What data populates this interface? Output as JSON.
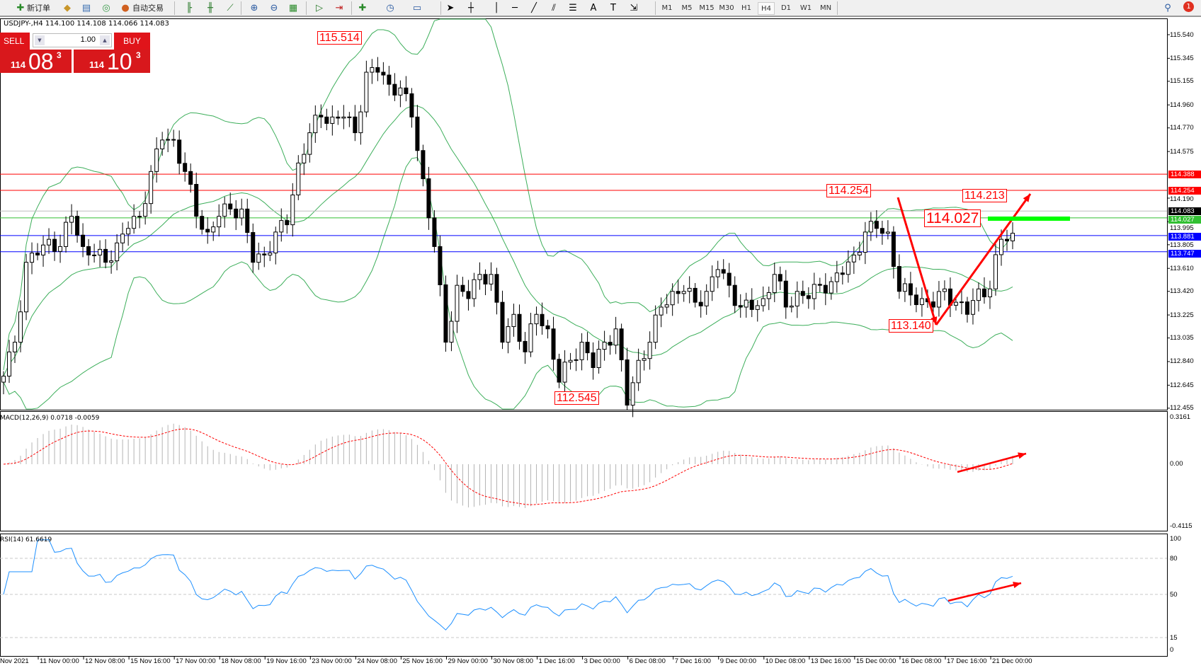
{
  "toolbar": {
    "new_order": "新订单",
    "auto_trading": "自动交易",
    "timeframes": [
      "M1",
      "M5",
      "M15",
      "M30",
      "H1",
      "H4",
      "D1",
      "W1",
      "MN"
    ],
    "active_timeframe": "H4",
    "notification_count": "1"
  },
  "chart_header": "USDJPY-,H4  114.100 114.108 114.066 114.083",
  "one_click": {
    "sell_label": "SELL",
    "buy_label": "BUY",
    "volume": "1.00",
    "sell_big": "114",
    "sell_main": "08",
    "sell_sup": "3",
    "buy_big": "114",
    "buy_main": "10",
    "buy_sup": "3",
    "color": "#e0141a"
  },
  "price_axis": [
    "115.540",
    "115.345",
    "115.155",
    "114.960",
    "114.770",
    "114.575",
    "114.190",
    "113.995",
    "113.805",
    "113.610",
    "113.420",
    "113.225",
    "113.035",
    "112.840",
    "112.645",
    "112.455"
  ],
  "price_tags": [
    {
      "value": "114.388",
      "color": "#ff0000"
    },
    {
      "value": "114.254",
      "color": "#ff0000"
    },
    {
      "value": "114.083",
      "color": "#000000"
    },
    {
      "value": "114.027",
      "color": "#32c032"
    },
    {
      "value": "113.881",
      "color": "#0000ff"
    },
    {
      "value": "113.747",
      "color": "#0000ff"
    }
  ],
  "annotations": {
    "high_label": "115.514",
    "low_label": "112.545",
    "resistance_label": "114.254",
    "recent_high_label": "114.213",
    "breakout_label": "114.027",
    "swing_low_label": "113.140"
  },
  "macd": {
    "label": "MACD(12,26,9) 0.0718 -0.0059",
    "axis": [
      "0.3161",
      "0.00",
      "-0.4115"
    ]
  },
  "rsi": {
    "label": "RSI(14) 61.6619",
    "axis": [
      "100",
      "80",
      "50",
      "15",
      "0"
    ]
  },
  "time_axis": [
    "Nov 2021",
    "11 Nov 00:00",
    "12 Nov 08:00",
    "15 Nov 16:00",
    "17 Nov 00:00",
    "18 Nov 08:00",
    "19 Nov 16:00",
    "23 Nov 00:00",
    "24 Nov 08:00",
    "25 Nov 16:00",
    "29 Nov 00:00",
    "30 Nov 08:00",
    "1 Dec 16:00",
    "3 Dec 00:00",
    "6 Dec 08:00",
    "7 Dec 16:00",
    "9 Dec 00:00",
    "10 Dec 08:00",
    "13 Dec 16:00",
    "15 Dec 00:00",
    "16 Dec 08:00",
    "17 Dec 16:00",
    "21 Dec 00:00"
  ],
  "chart_data": {
    "type": "candlestick",
    "symbol": "USDJPY-",
    "timeframe": "H4",
    "ylim": [
      112.455,
      115.54
    ],
    "closes": [
      112.72,
      113.0,
      113.66,
      113.72,
      113.85,
      113.79,
      114.04,
      113.79,
      113.72,
      113.66,
      113.82,
      113.94,
      114.04,
      114.41,
      114.67,
      114.67,
      114.41,
      114.04,
      113.91,
      114.04,
      114.1,
      114.1,
      113.66,
      113.72,
      113.91,
      113.97,
      114.48,
      114.73,
      114.86,
      114.86,
      114.86,
      114.73,
      115.23,
      115.23,
      115.13,
      115.1,
      114.86,
      114.35,
      113.79,
      113.0,
      113.47,
      113.36,
      113.56,
      113.56,
      113.0,
      113.23,
      112.92,
      113.23,
      113.11,
      112.67,
      112.85,
      113.0,
      112.79,
      113.0,
      113.11,
      112.48,
      112.85,
      113.0,
      113.29,
      113.42,
      113.42,
      113.33,
      113.42,
      113.6,
      113.47,
      113.29,
      113.27,
      113.36,
      113.56,
      113.29,
      113.42,
      113.36,
      113.47,
      113.5,
      113.56,
      113.72,
      113.91,
      113.94,
      113.91,
      113.42,
      113.39,
      113.36,
      113.29,
      113.44,
      113.33,
      113.23,
      113.44,
      113.44,
      113.85,
      113.9
    ],
    "indicators": [
      "Bollinger Bands",
      "MACD(12,26,9)",
      "RSI(14)"
    ],
    "colors": {
      "bands": "#3cae5a",
      "macd_hist": "#b4b4b4",
      "macd_signal": "#ff0000",
      "rsi": "#1e90ff",
      "arrow": "#ff0000",
      "zone": "#00ff00"
    }
  }
}
